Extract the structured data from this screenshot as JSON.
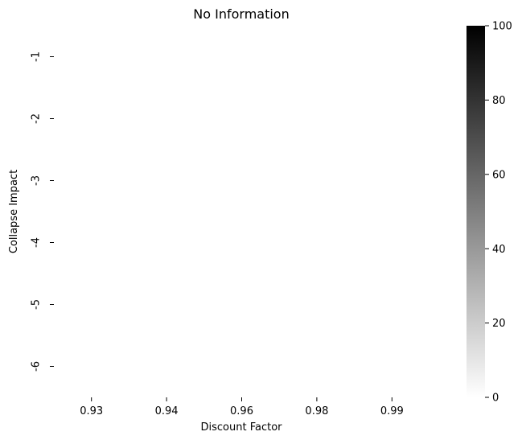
{
  "chart_data": {
    "type": "heatmap",
    "title": "No Information",
    "xlabel": "Discount Factor",
    "ylabel": "Collapse Impact",
    "x_categories": [
      "0.93",
      "0.94",
      "0.96",
      "0.98",
      "0.99"
    ],
    "y_categories": [
      "-1",
      "-2",
      "-3",
      "-4",
      "-5",
      "-6"
    ],
    "values": [
      [
        null,
        null,
        null,
        null,
        null
      ],
      [
        null,
        null,
        null,
        null,
        null
      ],
      [
        null,
        null,
        null,
        null,
        null
      ],
      [
        null,
        null,
        null,
        null,
        null
      ],
      [
        null,
        null,
        null,
        null,
        null
      ],
      [
        null,
        null,
        null,
        null,
        null
      ]
    ],
    "colorbar": {
      "min": 0,
      "max": 100,
      "ticks": [
        "0",
        "20",
        "40",
        "60",
        "80",
        "100"
      ],
      "color_low": "#ffffff",
      "color_high": "#000000"
    },
    "grid": false
  }
}
